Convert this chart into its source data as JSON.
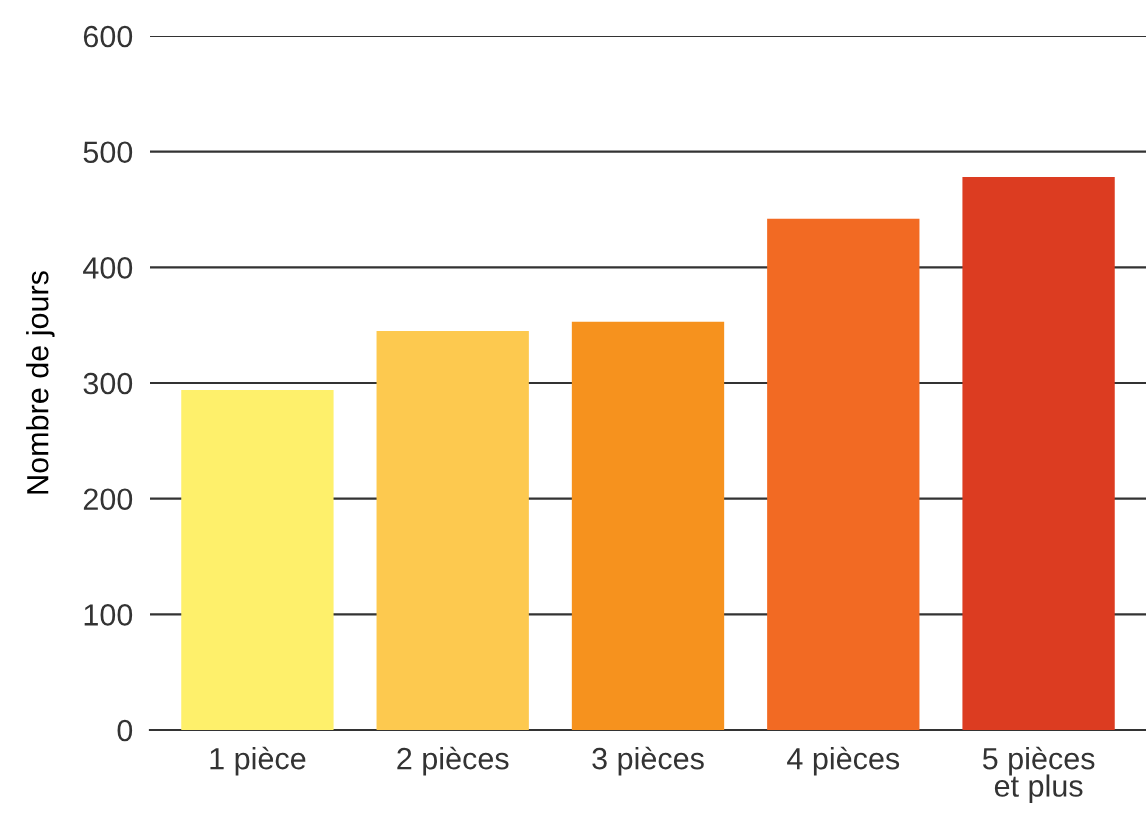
{
  "chart_data": {
    "type": "bar",
    "ylabel": "Nombre de jours",
    "categories": [
      "1 pièce",
      "2 pièces",
      "3 pièces",
      "4 pièces",
      "5 pièces\net plus"
    ],
    "values": [
      294,
      345,
      353,
      442,
      478
    ],
    "colors": [
      "#fef06b",
      "#fdc94f",
      "#f6921e",
      "#f26a23",
      "#dc3c21"
    ],
    "ylim": [
      0,
      600
    ],
    "yticks": [
      0,
      100,
      200,
      300,
      400,
      500,
      600
    ],
    "grid": "y"
  }
}
